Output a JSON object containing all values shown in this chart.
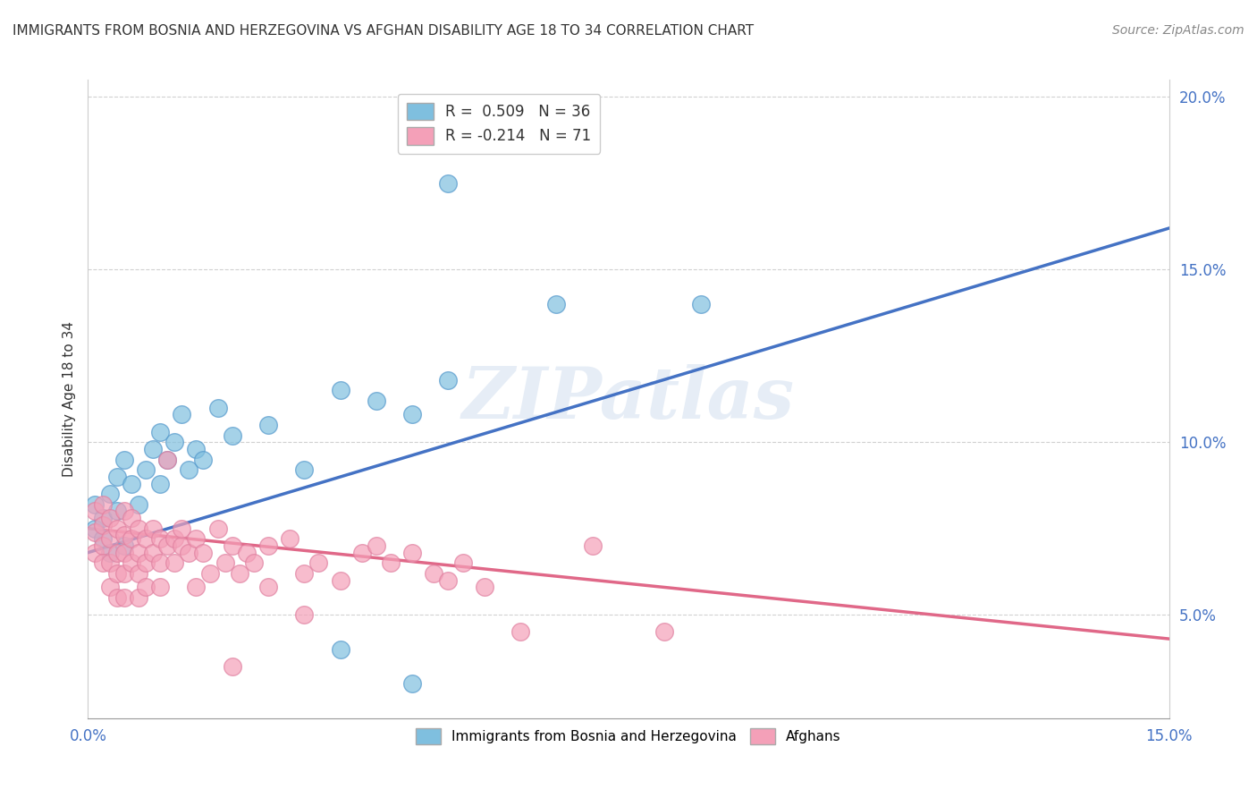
{
  "title": "IMMIGRANTS FROM BOSNIA AND HERZEGOVINA VS AFGHAN DISABILITY AGE 18 TO 34 CORRELATION CHART",
  "source": "Source: ZipAtlas.com",
  "ylabel": "Disability Age 18 to 34",
  "xlim": [
    0.0,
    0.15
  ],
  "ylim": [
    0.02,
    0.205
  ],
  "xticks": [
    0.0,
    0.025,
    0.05,
    0.075,
    0.1,
    0.125,
    0.15
  ],
  "yticks": [
    0.05,
    0.1,
    0.15,
    0.2
  ],
  "blue_color": "#7fbfdf",
  "pink_color": "#f4a0b8",
  "blue_line_color": "#4472c4",
  "pink_line_color": "#e06888",
  "blue_line_x0": 0.0,
  "blue_line_y0": 0.068,
  "blue_line_x1": 0.15,
  "blue_line_y1": 0.162,
  "pink_line_x0": 0.0,
  "pink_line_y0": 0.075,
  "pink_line_x1": 0.15,
  "pink_line_y1": 0.043,
  "watermark": "ZIPatlas",
  "legend1_label": "R =  0.509   N = 36",
  "legend2_label": "R = -0.214   N = 71",
  "bottom_legend1": "Immigrants from Bosnia and Herzegovina",
  "bottom_legend2": "Afghans",
  "bosnia_points": [
    [
      0.001,
      0.075
    ],
    [
      0.001,
      0.082
    ],
    [
      0.002,
      0.078
    ],
    [
      0.002,
      0.072
    ],
    [
      0.003,
      0.085
    ],
    [
      0.003,
      0.068
    ],
    [
      0.004,
      0.08
    ],
    [
      0.004,
      0.09
    ],
    [
      0.005,
      0.07
    ],
    [
      0.005,
      0.095
    ],
    [
      0.006,
      0.088
    ],
    [
      0.007,
      0.082
    ],
    [
      0.008,
      0.092
    ],
    [
      0.009,
      0.098
    ],
    [
      0.01,
      0.088
    ],
    [
      0.01,
      0.103
    ],
    [
      0.011,
      0.095
    ],
    [
      0.012,
      0.1
    ],
    [
      0.013,
      0.108
    ],
    [
      0.014,
      0.092
    ],
    [
      0.015,
      0.098
    ],
    [
      0.016,
      0.095
    ],
    [
      0.018,
      0.11
    ],
    [
      0.02,
      0.102
    ],
    [
      0.025,
      0.105
    ],
    [
      0.03,
      0.092
    ],
    [
      0.035,
      0.115
    ],
    [
      0.04,
      0.112
    ],
    [
      0.045,
      0.108
    ],
    [
      0.05,
      0.118
    ],
    [
      0.035,
      0.04
    ],
    [
      0.045,
      0.03
    ],
    [
      0.065,
      0.14
    ],
    [
      0.085,
      0.14
    ],
    [
      0.05,
      0.175
    ],
    [
      0.065,
      0.195
    ]
  ],
  "afghan_points": [
    [
      0.001,
      0.08
    ],
    [
      0.001,
      0.074
    ],
    [
      0.001,
      0.068
    ],
    [
      0.002,
      0.082
    ],
    [
      0.002,
      0.076
    ],
    [
      0.002,
      0.07
    ],
    [
      0.002,
      0.065
    ],
    [
      0.003,
      0.078
    ],
    [
      0.003,
      0.072
    ],
    [
      0.003,
      0.065
    ],
    [
      0.003,
      0.058
    ],
    [
      0.004,
      0.075
    ],
    [
      0.004,
      0.068
    ],
    [
      0.004,
      0.062
    ],
    [
      0.004,
      0.055
    ],
    [
      0.005,
      0.08
    ],
    [
      0.005,
      0.073
    ],
    [
      0.005,
      0.068
    ],
    [
      0.005,
      0.062
    ],
    [
      0.005,
      0.055
    ],
    [
      0.006,
      0.078
    ],
    [
      0.006,
      0.072
    ],
    [
      0.006,
      0.065
    ],
    [
      0.007,
      0.075
    ],
    [
      0.007,
      0.068
    ],
    [
      0.007,
      0.062
    ],
    [
      0.007,
      0.055
    ],
    [
      0.008,
      0.072
    ],
    [
      0.008,
      0.065
    ],
    [
      0.008,
      0.058
    ],
    [
      0.009,
      0.075
    ],
    [
      0.009,
      0.068
    ],
    [
      0.01,
      0.072
    ],
    [
      0.01,
      0.065
    ],
    [
      0.01,
      0.058
    ],
    [
      0.011,
      0.095
    ],
    [
      0.011,
      0.07
    ],
    [
      0.012,
      0.072
    ],
    [
      0.012,
      0.065
    ],
    [
      0.013,
      0.07
    ],
    [
      0.013,
      0.075
    ],
    [
      0.014,
      0.068
    ],
    [
      0.015,
      0.072
    ],
    [
      0.015,
      0.058
    ],
    [
      0.016,
      0.068
    ],
    [
      0.017,
      0.062
    ],
    [
      0.018,
      0.075
    ],
    [
      0.019,
      0.065
    ],
    [
      0.02,
      0.07
    ],
    [
      0.021,
      0.062
    ],
    [
      0.022,
      0.068
    ],
    [
      0.023,
      0.065
    ],
    [
      0.025,
      0.07
    ],
    [
      0.025,
      0.058
    ],
    [
      0.028,
      0.072
    ],
    [
      0.03,
      0.062
    ],
    [
      0.032,
      0.065
    ],
    [
      0.035,
      0.06
    ],
    [
      0.038,
      0.068
    ],
    [
      0.04,
      0.07
    ],
    [
      0.042,
      0.065
    ],
    [
      0.045,
      0.068
    ],
    [
      0.048,
      0.062
    ],
    [
      0.05,
      0.06
    ],
    [
      0.052,
      0.065
    ],
    [
      0.055,
      0.058
    ],
    [
      0.06,
      0.045
    ],
    [
      0.07,
      0.07
    ],
    [
      0.08,
      0.045
    ],
    [
      0.02,
      0.035
    ],
    [
      0.03,
      0.05
    ]
  ]
}
